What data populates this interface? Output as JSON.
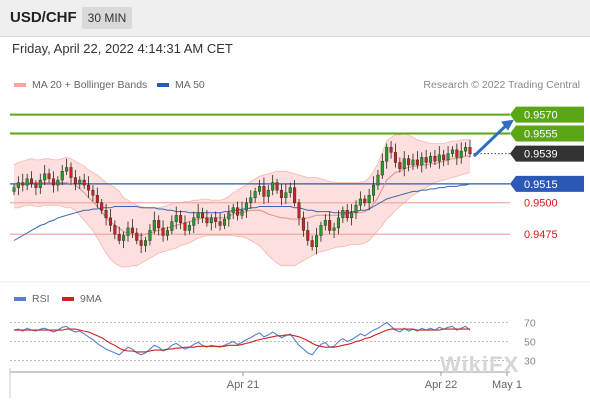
{
  "header": {
    "symbol": "USD/CHF",
    "timeframe": "30 MIN"
  },
  "timestamp": "Friday, April 22, 2022 4:14:31 AM CET",
  "legend": {
    "bb_label": "MA 20 + Bollinger Bands",
    "ma50_label": "MA 50",
    "credit": "Research © 2022 Trading Central"
  },
  "rsi_legend": {
    "rsi_label": "RSI",
    "ma_label": "9MA"
  },
  "watermark": "WikiFX",
  "colors": {
    "resistance": "#5aa614",
    "support": "#2c58b8",
    "support_secondary": "#d01a1a",
    "current": "#333333",
    "bull": "#2a9a2a",
    "bear": "#cc2222",
    "bb": "#f5b6b0",
    "ma50": "#3a66b0",
    "rsi": "#5b7fd0",
    "rsi_ma": "#cc2222"
  },
  "chart_data": [
    {
      "type": "candlestick",
      "levels": [
        {
          "value": 0.957,
          "label": "0.9570",
          "kind": "resistance"
        },
        {
          "value": 0.9555,
          "label": "0.9555",
          "kind": "resistance"
        },
        {
          "value": 0.9539,
          "label": "0.9539",
          "kind": "current"
        },
        {
          "value": 0.9515,
          "label": "0.9515",
          "kind": "pivot"
        },
        {
          "value": 0.95,
          "label": "0.9500",
          "kind": "support"
        },
        {
          "value": 0.9475,
          "label": "0.9475",
          "kind": "support"
        }
      ],
      "ylim": [
        0.9445,
        0.958
      ],
      "series": {
        "close": [
          0.9512,
          0.9516,
          0.9514,
          0.9519,
          0.9515,
          0.9512,
          0.9518,
          0.9523,
          0.9519,
          0.9514,
          0.9518,
          0.9525,
          0.9528,
          0.952,
          0.9515,
          0.9518,
          0.9514,
          0.951,
          0.9506,
          0.95,
          0.9494,
          0.9488,
          0.9482,
          0.9475,
          0.947,
          0.9474,
          0.948,
          0.9476,
          0.947,
          0.9466,
          0.947,
          0.9478,
          0.9486,
          0.948,
          0.9474,
          0.9478,
          0.9485,
          0.949,
          0.9484,
          0.9478,
          0.9482,
          0.9488,
          0.9492,
          0.9488,
          0.9484,
          0.9488,
          0.9485,
          0.9482,
          0.9487,
          0.9492,
          0.9496,
          0.949,
          0.9494,
          0.95,
          0.9504,
          0.9509,
          0.9513,
          0.9505,
          0.951,
          0.9516,
          0.951,
          0.9504,
          0.9508,
          0.9512,
          0.95,
          0.9488,
          0.9478,
          0.947,
          0.9465,
          0.9474,
          0.9482,
          0.9486,
          0.9478,
          0.948,
          0.9488,
          0.9494,
          0.9488,
          0.9492,
          0.9498,
          0.9503,
          0.95,
          0.9506,
          0.9514,
          0.9522,
          0.9533,
          0.9544,
          0.954,
          0.9532,
          0.9527,
          0.9535,
          0.953,
          0.9534,
          0.953,
          0.9536,
          0.9532,
          0.9537,
          0.9533,
          0.9538,
          0.9534,
          0.9539,
          0.9542,
          0.9536,
          0.9541,
          0.9544,
          0.9539
        ],
        "bb_upper": [
          0.953,
          0.9532,
          0.9533,
          0.9534,
          0.9535,
          0.9534,
          0.9534,
          0.9535,
          0.9535,
          0.9534,
          0.9534,
          0.9535,
          0.9536,
          0.9535,
          0.9533,
          0.9531,
          0.9529,
          0.9526,
          0.9524,
          0.9522,
          0.9519,
          0.9516,
          0.9514,
          0.9512,
          0.9509,
          0.9504,
          0.9502,
          0.95,
          0.9498,
          0.9497,
          0.9496,
          0.9495,
          0.9496,
          0.9496,
          0.9497,
          0.9498,
          0.9499,
          0.95,
          0.95,
          0.9501,
          0.9501,
          0.9502,
          0.9502,
          0.9503,
          0.9503,
          0.9502,
          0.9502,
          0.9502,
          0.9503,
          0.9505,
          0.9508,
          0.951,
          0.9512,
          0.9514,
          0.9517,
          0.9519,
          0.9521,
          0.9522,
          0.9523,
          0.9524,
          0.9525,
          0.9525,
          0.9525,
          0.9524,
          0.9523,
          0.9522,
          0.9521,
          0.952,
          0.952,
          0.952,
          0.9519,
          0.9518,
          0.9517,
          0.9516,
          0.9516,
          0.9516,
          0.9516,
          0.9516,
          0.9516,
          0.9516,
          0.9517,
          0.952,
          0.9525,
          0.9531,
          0.954,
          0.9549,
          0.9552,
          0.9554,
          0.9554,
          0.9555,
          0.9554,
          0.9552,
          0.955,
          0.9549,
          0.9548,
          0.9547,
          0.9547,
          0.9547,
          0.9547,
          0.9548,
          0.9549,
          0.9549,
          0.955,
          0.955,
          0.955
        ],
        "bb_lower": [
          0.9496,
          0.9496,
          0.9497,
          0.9498,
          0.9498,
          0.9497,
          0.9497,
          0.9498,
          0.9498,
          0.9498,
          0.9498,
          0.9497,
          0.9496,
          0.9496,
          0.9494,
          0.949,
          0.9486,
          0.9482,
          0.9478,
          0.9472,
          0.9466,
          0.946,
          0.9455,
          0.9452,
          0.945,
          0.9449,
          0.9449,
          0.945,
          0.945,
          0.9452,
          0.9454,
          0.9456,
          0.9458,
          0.946,
          0.9461,
          0.9462,
          0.9463,
          0.9464,
          0.9466,
          0.9467,
          0.9468,
          0.947,
          0.9472,
          0.9473,
          0.9474,
          0.9474,
          0.9474,
          0.9474,
          0.9474,
          0.9474,
          0.9474,
          0.9473,
          0.9473,
          0.9472,
          0.947,
          0.9468,
          0.9466,
          0.9462,
          0.9458,
          0.9455,
          0.9452,
          0.945,
          0.945,
          0.945,
          0.945,
          0.9452,
          0.9454,
          0.9456,
          0.9458,
          0.946,
          0.9461,
          0.9462,
          0.9463,
          0.9464,
          0.9465,
          0.9465,
          0.9466,
          0.9467,
          0.9467,
          0.9467,
          0.9468,
          0.947,
          0.9474,
          0.9478,
          0.9482,
          0.9487,
          0.949,
          0.9494,
          0.9497,
          0.95,
          0.9503,
          0.9506,
          0.9508,
          0.951,
          0.9512,
          0.9514,
          0.9516,
          0.9517,
          0.9518,
          0.9519,
          0.952,
          0.9521,
          0.9522,
          0.9523,
          0.9524
        ],
        "ma20": [
          0.9513,
          0.9514,
          0.9515,
          0.9516,
          0.9516,
          0.9516,
          0.9516,
          0.9516,
          0.9516,
          0.9516,
          0.9516,
          0.9516,
          0.9516,
          0.9515,
          0.9514,
          0.9511,
          0.9508,
          0.9504,
          0.9501,
          0.9497,
          0.9493,
          0.9488,
          0.9485,
          0.9482,
          0.948,
          0.9477,
          0.9476,
          0.9475,
          0.9474,
          0.9474,
          0.9475,
          0.9476,
          0.9477,
          0.9478,
          0.9479,
          0.948,
          0.9481,
          0.9482,
          0.9483,
          0.9484,
          0.9485,
          0.9486,
          0.9487,
          0.9488,
          0.9488,
          0.9488,
          0.9488,
          0.9488,
          0.9488,
          0.9489,
          0.9491,
          0.9492,
          0.9492,
          0.9493,
          0.9494,
          0.9494,
          0.9494,
          0.9493,
          0.9491,
          0.949,
          0.9489,
          0.9488,
          0.9488,
          0.9487,
          0.9487,
          0.9487,
          0.9487,
          0.9488,
          0.9489,
          0.949,
          0.949,
          0.949,
          0.949,
          0.949,
          0.949,
          0.9491,
          0.9491,
          0.9492,
          0.9492,
          0.9492,
          0.9493,
          0.9495,
          0.9499,
          0.9504,
          0.9511,
          0.9518,
          0.9521,
          0.9524,
          0.9525,
          0.9527,
          0.9528,
          0.9529,
          0.9529,
          0.953,
          0.953,
          0.9531,
          0.9531,
          0.9532,
          0.9533,
          0.9534,
          0.9535,
          0.9535,
          0.9536,
          0.9537,
          0.9537
        ],
        "ma50": [
          0.947,
          0.9472,
          0.9474,
          0.9476,
          0.9478,
          0.948,
          0.9482,
          0.9483,
          0.9485,
          0.9486,
          0.9488,
          0.9489,
          0.949,
          0.9491,
          0.9492,
          0.9493,
          0.9494,
          0.9494,
          0.9495,
          0.9495,
          0.9496,
          0.9496,
          0.9496,
          0.9497,
          0.9497,
          0.9497,
          0.9497,
          0.9497,
          0.9497,
          0.9496,
          0.9496,
          0.9496,
          0.9496,
          0.9495,
          0.9495,
          0.9494,
          0.9494,
          0.9493,
          0.9493,
          0.9493,
          0.9492,
          0.9492,
          0.9492,
          0.9492,
          0.9492,
          0.9492,
          0.9492,
          0.9492,
          0.9493,
          0.9493,
          0.9494,
          0.9494,
          0.9495,
          0.9495,
          0.9496,
          0.9496,
          0.9497,
          0.9497,
          0.9497,
          0.9497,
          0.9497,
          0.9497,
          0.9497,
          0.9497,
          0.9496,
          0.9496,
          0.9495,
          0.9494,
          0.9494,
          0.9493,
          0.9493,
          0.9493,
          0.9493,
          0.9492,
          0.9492,
          0.9492,
          0.9492,
          0.9493,
          0.9493,
          0.9494,
          0.9494,
          0.9495,
          0.9497,
          0.9499,
          0.9501,
          0.9503,
          0.9504,
          0.9505,
          0.9506,
          0.9507,
          0.9508,
          0.9509,
          0.9509,
          0.951,
          0.951,
          0.9511,
          0.9511,
          0.9512,
          0.9512,
          0.9513,
          0.9513,
          0.9513,
          0.9514,
          0.9514,
          0.9515
        ]
      }
    },
    {
      "type": "line",
      "ylim": [
        20,
        80
      ],
      "yticks": [
        "70",
        "50",
        "30"
      ],
      "xticks": [
        "Apr 21",
        "Apr 22",
        "May 1"
      ],
      "series": [
        {
          "name": "RSI",
          "values": [
            62,
            63,
            61,
            64,
            62,
            61,
            63,
            64,
            62,
            60,
            62,
            65,
            66,
            62,
            60,
            61,
            58,
            55,
            52,
            48,
            45,
            42,
            40,
            38,
            36,
            40,
            44,
            42,
            38,
            36,
            38,
            42,
            46,
            44,
            40,
            42,
            46,
            48,
            45,
            42,
            44,
            47,
            49,
            46,
            44,
            46,
            45,
            44,
            46,
            48,
            50,
            47,
            49,
            52,
            54,
            57,
            59,
            55,
            57,
            60,
            57,
            54,
            56,
            58,
            52,
            46,
            42,
            38,
            36,
            42,
            47,
            49,
            44,
            45,
            50,
            53,
            50,
            52,
            55,
            58,
            56,
            59,
            62,
            64,
            67,
            70,
            66,
            62,
            60,
            64,
            61,
            63,
            61,
            64,
            62,
            64,
            62,
            65,
            63,
            65,
            66,
            62,
            64,
            66,
            62
          ]
        },
        {
          "name": "9MA",
          "values": [
            62,
            62,
            62,
            62,
            62,
            62,
            62,
            62,
            62,
            62,
            62,
            62,
            63,
            63,
            63,
            62,
            61,
            60,
            58,
            56,
            54,
            51,
            48,
            46,
            43,
            41,
            40,
            40,
            39,
            39,
            39,
            40,
            41,
            41,
            41,
            42,
            42,
            43,
            43,
            44,
            44,
            44,
            45,
            45,
            45,
            45,
            45,
            45,
            45,
            46,
            46,
            46,
            47,
            48,
            49,
            51,
            52,
            53,
            54,
            55,
            56,
            56,
            57,
            57,
            56,
            55,
            53,
            51,
            48,
            46,
            45,
            44,
            44,
            44,
            45,
            46,
            47,
            48,
            50,
            51,
            53,
            54,
            56,
            58,
            60,
            62,
            63,
            63,
            63,
            63,
            63,
            63,
            62,
            62,
            62,
            62,
            62,
            62,
            63,
            63,
            63,
            63,
            63,
            63,
            63
          ]
        }
      ]
    }
  ]
}
